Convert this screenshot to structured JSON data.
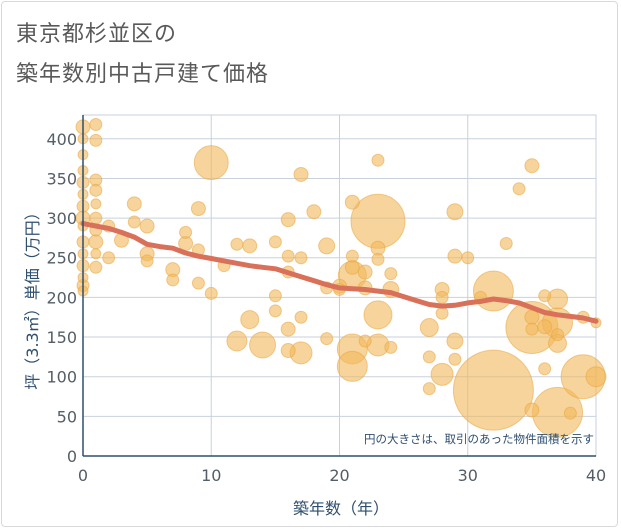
{
  "chart_data": {
    "type": "scatter",
    "title_line1": "東京都杉並区の",
    "title_line2": "築年数別中古戸建て価格",
    "xlabel": "築年数（年）",
    "ylabel": "坪（3.3㎡）単価（万円）",
    "note": "円の大きさは、取引のあった物件面積を示す",
    "xlim": [
      0,
      40
    ],
    "ylim": [
      0,
      430
    ],
    "x_ticks": [
      0,
      10,
      20,
      30,
      40
    ],
    "y_ticks": [
      0,
      50,
      100,
      150,
      200,
      250,
      300,
      350,
      400
    ],
    "bubble_color": "#f2b85a",
    "trend_color": "#d9705a",
    "grid_color": "#c8d2dc",
    "points": [
      [
        0,
        415,
        7
      ],
      [
        0,
        400,
        5
      ],
      [
        0,
        380,
        5
      ],
      [
        0,
        360,
        5
      ],
      [
        0,
        345,
        6
      ],
      [
        0,
        330,
        5
      ],
      [
        0,
        315,
        6
      ],
      [
        0,
        300,
        7
      ],
      [
        0,
        290,
        5
      ],
      [
        0,
        270,
        6
      ],
      [
        0,
        255,
        5
      ],
      [
        0,
        240,
        6
      ],
      [
        0,
        225,
        5
      ],
      [
        0,
        215,
        6
      ],
      [
        0,
        208,
        5
      ],
      [
        1,
        418,
        6
      ],
      [
        1,
        398,
        6
      ],
      [
        1,
        348,
        6
      ],
      [
        1,
        335,
        6
      ],
      [
        1,
        318,
        5
      ],
      [
        1,
        300,
        6
      ],
      [
        1,
        285,
        6
      ],
      [
        1,
        270,
        7
      ],
      [
        1,
        255,
        5
      ],
      [
        1,
        238,
        6
      ],
      [
        2,
        290,
        6
      ],
      [
        2,
        250,
        6
      ],
      [
        3,
        272,
        7
      ],
      [
        4,
        318,
        7
      ],
      [
        4,
        295,
        6
      ],
      [
        5,
        290,
        7
      ],
      [
        5,
        255,
        7
      ],
      [
        5,
        246,
        6
      ],
      [
        7,
        235,
        7
      ],
      [
        7,
        222,
        6
      ],
      [
        8,
        282,
        6
      ],
      [
        8,
        268,
        7
      ],
      [
        9,
        312,
        7
      ],
      [
        9,
        260,
        6
      ],
      [
        9,
        218,
        6
      ],
      [
        10,
        205,
        6
      ],
      [
        10,
        370,
        17
      ],
      [
        11,
        240,
        6
      ],
      [
        12,
        267,
        6
      ],
      [
        12,
        145,
        10
      ],
      [
        13,
        265,
        7
      ],
      [
        13,
        172,
        9
      ],
      [
        14,
        140,
        13
      ],
      [
        15,
        270,
        6
      ],
      [
        15,
        202,
        6
      ],
      [
        15,
        183,
        6
      ],
      [
        16,
        298,
        7
      ],
      [
        16,
        252,
        6
      ],
      [
        16,
        232,
        6
      ],
      [
        16,
        160,
        7
      ],
      [
        16,
        133,
        7
      ],
      [
        17,
        355,
        7
      ],
      [
        17,
        250,
        6
      ],
      [
        17,
        175,
        6
      ],
      [
        17,
        130,
        11
      ],
      [
        18,
        308,
        7
      ],
      [
        19,
        265,
        8
      ],
      [
        19,
        212,
        6
      ],
      [
        19,
        148,
        6
      ],
      [
        20,
        214,
        7
      ],
      [
        20,
        210,
        6
      ],
      [
        21,
        320,
        7
      ],
      [
        21,
        252,
        6
      ],
      [
        21,
        238,
        7
      ],
      [
        21,
        228,
        14
      ],
      [
        21,
        135,
        15
      ],
      [
        21,
        113,
        15
      ],
      [
        22,
        232,
        7
      ],
      [
        22,
        212,
        7
      ],
      [
        22,
        145,
        6
      ],
      [
        23,
        373,
        6
      ],
      [
        23,
        296,
        27
      ],
      [
        23,
        262,
        7
      ],
      [
        23,
        248,
        6
      ],
      [
        23,
        178,
        14
      ],
      [
        23,
        140,
        11
      ],
      [
        24,
        230,
        6
      ],
      [
        24,
        210,
        8
      ],
      [
        24,
        137,
        6
      ],
      [
        27,
        162,
        9
      ],
      [
        27,
        125,
        6
      ],
      [
        27,
        85,
        6
      ],
      [
        28,
        210,
        7
      ],
      [
        28,
        200,
        6
      ],
      [
        28,
        180,
        6
      ],
      [
        28,
        103,
        11
      ],
      [
        29,
        308,
        8
      ],
      [
        29,
        252,
        7
      ],
      [
        29,
        145,
        8
      ],
      [
        29,
        122,
        6
      ],
      [
        30,
        250,
        6
      ],
      [
        31,
        200,
        6
      ],
      [
        32,
        208,
        20
      ],
      [
        32,
        83,
        40
      ],
      [
        33,
        268,
        6
      ],
      [
        34,
        337,
        6
      ],
      [
        35,
        366,
        7
      ],
      [
        35,
        175,
        7
      ],
      [
        35,
        160,
        6
      ],
      [
        35,
        162,
        26
      ],
      [
        35,
        58,
        7
      ],
      [
        36,
        202,
        6
      ],
      [
        36,
        163,
        7
      ],
      [
        36,
        110,
        6
      ],
      [
        37,
        198,
        10
      ],
      [
        37,
        168,
        15
      ],
      [
        37,
        153,
        6
      ],
      [
        37,
        142,
        9
      ],
      [
        37,
        55,
        25
      ],
      [
        38,
        54,
        6
      ],
      [
        39,
        175,
        6
      ],
      [
        39,
        100,
        22
      ],
      [
        40,
        100,
        10
      ],
      [
        40,
        168,
        5
      ]
    ],
    "trend": [
      [
        0,
        293
      ],
      [
        1,
        290
      ],
      [
        2,
        287
      ],
      [
        3,
        282
      ],
      [
        4,
        276
      ],
      [
        5,
        267
      ],
      [
        6,
        264
      ],
      [
        7,
        262
      ],
      [
        8,
        256
      ],
      [
        9,
        252
      ],
      [
        10,
        249
      ],
      [
        11,
        246
      ],
      [
        12,
        243
      ],
      [
        13,
        240
      ],
      [
        14,
        238
      ],
      [
        15,
        236
      ],
      [
        16,
        231
      ],
      [
        17,
        226
      ],
      [
        18,
        221
      ],
      [
        19,
        216
      ],
      [
        20,
        212
      ],
      [
        21,
        211
      ],
      [
        22,
        210
      ],
      [
        23,
        208
      ],
      [
        24,
        206
      ],
      [
        25,
        201
      ],
      [
        26,
        196
      ],
      [
        27,
        191
      ],
      [
        28,
        189
      ],
      [
        29,
        190
      ],
      [
        30,
        193
      ],
      [
        31,
        195
      ],
      [
        32,
        198
      ],
      [
        33,
        196
      ],
      [
        34,
        193
      ],
      [
        35,
        187
      ],
      [
        36,
        181
      ],
      [
        37,
        178
      ],
      [
        38,
        176
      ],
      [
        39,
        174
      ],
      [
        40,
        170
      ]
    ]
  }
}
